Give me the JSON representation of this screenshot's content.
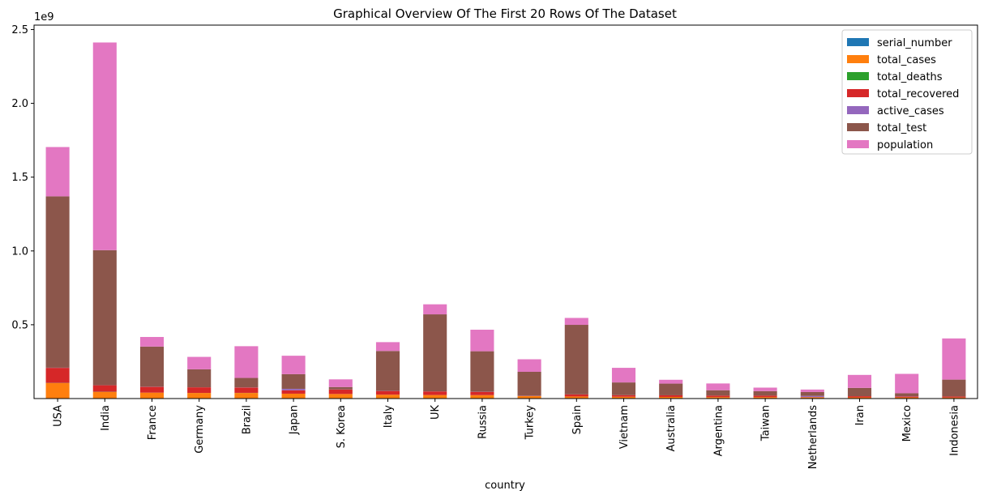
{
  "chart_data": {
    "type": "bar",
    "stacked": true,
    "title": "Graphical Overview Of The First 20 Rows Of The Dataset",
    "xlabel": "country",
    "ylabel": "",
    "y_scale_label": "1e9",
    "ylim": [
      0,
      2.53
    ],
    "y_ticks": [
      0.5,
      1.0,
      1.5,
      2.0,
      2.5
    ],
    "y_tick_labels": [
      "0.5",
      "1.0",
      "1.5",
      "2.0",
      "2.5"
    ],
    "legend_position": "top-right",
    "grid": false,
    "categories": [
      "USA",
      "India",
      "France",
      "Germany",
      "Brazil",
      "Japan",
      "S. Korea",
      "Italy",
      "UK",
      "Russia",
      "Turkey",
      "Spain",
      "Vietnam",
      "Australia",
      "Argentina",
      "Taiwan",
      "Netherlands",
      "Iran",
      "Mexico",
      "Indonesia"
    ],
    "series": [
      {
        "name": "serial_number",
        "color": "#1f77b4",
        "values": [
          0,
          0,
          0,
          0,
          0,
          0,
          0,
          0,
          0,
          0,
          0,
          0,
          0,
          0,
          0,
          0,
          0,
          0,
          0,
          0
        ]
      },
      {
        "name": "total_cases",
        "color": "#ff7f0e",
        "values": [
          0.105,
          0.045,
          0.04,
          0.038,
          0.038,
          0.033,
          0.031,
          0.026,
          0.024,
          0.023,
          0.017,
          0.014,
          0.012,
          0.011,
          0.01,
          0.01,
          0.009,
          0.008,
          0.008,
          0.007
        ]
      },
      {
        "name": "total_deaths",
        "color": "#2ca02c",
        "values": [
          0.001,
          0.001,
          0.0002,
          0.0002,
          0.0007,
          0.0001,
          4e-05,
          0.0002,
          0.0002,
          0.0004,
          0.0001,
          0.0001,
          4e-05,
          2e-05,
          0.0001,
          2e-05,
          2e-05,
          0.0001,
          0.0003,
          0.0002
        ]
      },
      {
        "name": "total_recovered",
        "color": "#d62728",
        "values": [
          0.102,
          0.044,
          0.039,
          0.038,
          0.036,
          0.023,
          0.03,
          0.025,
          0.024,
          0.022,
          0.001,
          0.014,
          0.011,
          0.011,
          0.01,
          0.01,
          0.001,
          0.008,
          0.006,
          0.007
        ]
      },
      {
        "name": "active_cases",
        "color": "#9467bd",
        "values": [
          0.001,
          0.0003,
          0.001,
          0.0001,
          0.001,
          0.01,
          0.001,
          0.001,
          0.0003,
          0.001,
          0.001,
          0.0002,
          0.0001,
          0.0002,
          0.0001,
          0.0001,
          0.008,
          0.0001,
          0.002,
          0.0001
        ]
      },
      {
        "name": "total_test",
        "color": "#8c564b",
        "values": [
          1.161,
          0.915,
          0.272,
          0.122,
          0.064,
          0.099,
          0.016,
          0.27,
          0.522,
          0.274,
          0.162,
          0.471,
          0.086,
          0.079,
          0.036,
          0.03,
          0.026,
          0.056,
          0.02,
          0.114
        ]
      },
      {
        "name": "population",
        "color": "#e377c2",
        "values": [
          0.334,
          1.407,
          0.065,
          0.084,
          0.215,
          0.125,
          0.052,
          0.06,
          0.068,
          0.146,
          0.085,
          0.047,
          0.099,
          0.026,
          0.046,
          0.024,
          0.017,
          0.088,
          0.131,
          0.279
        ]
      }
    ]
  }
}
